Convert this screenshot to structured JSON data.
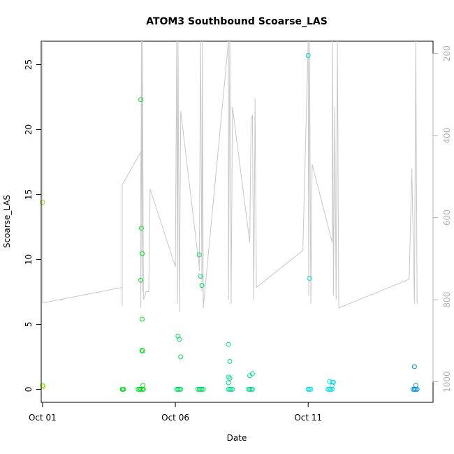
{
  "chart_data": {
    "type": "scatter",
    "title": "ATOM3 Southbound Scoarse_LAS",
    "xlabel": "Date",
    "ylabel": "Scoarse_LAS",
    "y2label": "",
    "x_ticks": [
      "Oct 01",
      "Oct 06",
      "Oct 11"
    ],
    "x_tick_days": [
      1,
      6,
      11
    ],
    "xlim": [
      0.95,
      15.7
    ],
    "ylim": [
      -1.0,
      26.8
    ],
    "y_ticks": [
      0,
      5,
      10,
      15,
      20,
      25
    ],
    "y2lim": [
      1050,
      170
    ],
    "y2_ticks": [
      200,
      400,
      600,
      800,
      1000
    ],
    "grid": false,
    "legend": "none",
    "colors": {
      "line": "#c8c8c8",
      "right_axis": "#b0b0b0",
      "axis": "#000000"
    },
    "scatter_series": [
      {
        "color": "#88e000",
        "points": [
          [
            1.0,
            14.4
          ],
          [
            1.0,
            0.3
          ],
          [
            1.02,
            0.2
          ]
        ]
      },
      {
        "color": "#00e020",
        "points": [
          [
            4.0,
            0.0
          ],
          [
            4.02,
            0.0
          ],
          [
            4.05,
            0.0
          ],
          [
            4.7,
            22.3
          ],
          [
            4.72,
            12.4
          ],
          [
            4.75,
            10.45
          ],
          [
            4.7,
            8.4
          ],
          [
            4.75,
            5.4
          ],
          [
            4.74,
            3.0
          ],
          [
            4.77,
            2.95
          ],
          [
            4.78,
            0.3
          ],
          [
            4.6,
            0.0
          ],
          [
            4.65,
            0.0
          ],
          [
            4.7,
            0.0
          ],
          [
            4.75,
            0.0
          ],
          [
            4.8,
            0.0
          ]
        ]
      },
      {
        "color": "#00e060",
        "points": [
          [
            6.1,
            4.1
          ],
          [
            6.15,
            3.85
          ],
          [
            6.2,
            2.5
          ],
          [
            6.05,
            0.0
          ],
          [
            6.1,
            0.0
          ],
          [
            6.15,
            0.0
          ],
          [
            6.2,
            0.0
          ],
          [
            6.9,
            10.35
          ],
          [
            6.95,
            8.7
          ],
          [
            7.0,
            8.0
          ],
          [
            6.85,
            0.0
          ],
          [
            6.9,
            0.0
          ],
          [
            6.95,
            0.0
          ],
          [
            7.0,
            0.0
          ],
          [
            7.05,
            0.0
          ]
        ]
      },
      {
        "color": "#00e090",
        "points": [
          [
            8.0,
            3.45
          ],
          [
            8.05,
            2.15
          ],
          [
            8.0,
            0.95
          ],
          [
            8.05,
            0.85
          ],
          [
            8.0,
            0.5
          ],
          [
            8.0,
            0.0
          ],
          [
            8.05,
            0.0
          ],
          [
            8.1,
            0.0
          ],
          [
            8.15,
            0.0
          ],
          [
            8.8,
            1.05
          ],
          [
            8.9,
            1.2
          ],
          [
            8.75,
            0.0
          ],
          [
            8.8,
            0.0
          ],
          [
            8.85,
            0.0
          ],
          [
            8.9,
            0.0
          ]
        ]
      },
      {
        "color": "#00e0e0",
        "points": [
          [
            11.0,
            25.7
          ],
          [
            11.05,
            8.55
          ],
          [
            11.0,
            0.0
          ],
          [
            11.05,
            0.0
          ],
          [
            11.1,
            0.0
          ],
          [
            11.8,
            0.6
          ],
          [
            11.9,
            0.55
          ],
          [
            11.95,
            0.55
          ],
          [
            11.9,
            0.3
          ],
          [
            11.75,
            0.0
          ],
          [
            11.8,
            0.0
          ],
          [
            11.85,
            0.0
          ],
          [
            11.9,
            0.0
          ]
        ]
      },
      {
        "color": "#0090e8",
        "points": [
          [
            15.0,
            1.75
          ],
          [
            15.05,
            0.3
          ],
          [
            14.95,
            0.0
          ],
          [
            15.0,
            0.0
          ],
          [
            15.05,
            0.0
          ],
          [
            15.1,
            0.0
          ]
        ]
      }
    ],
    "line_series": {
      "axis": "right",
      "points": [
        [
          1.0,
          170
        ],
        [
          1.0,
          808
        ],
        [
          4.0,
          770
        ],
        [
          4.0,
          815
        ],
        [
          4.0,
          520
        ],
        [
          4.7,
          440
        ],
        [
          4.7,
          820
        ],
        [
          4.72,
          170
        ],
        [
          4.75,
          780
        ],
        [
          4.76,
          170
        ],
        [
          4.78,
          500
        ],
        [
          4.8,
          800
        ],
        [
          4.9,
          780
        ],
        [
          5.0,
          780
        ],
        [
          5.05,
          530
        ],
        [
          6.0,
          720
        ],
        [
          6.05,
          170
        ],
        [
          6.08,
          810
        ],
        [
          6.1,
          170
        ],
        [
          6.15,
          830
        ],
        [
          6.2,
          340
        ],
        [
          6.9,
          720
        ],
        [
          6.9,
          730
        ],
        [
          6.95,
          170
        ],
        [
          7.0,
          780
        ],
        [
          7.02,
          170
        ],
        [
          7.05,
          820
        ],
        [
          8.0,
          170
        ],
        [
          8.0,
          800
        ],
        [
          8.05,
          170
        ],
        [
          8.1,
          810
        ],
        [
          8.15,
          330
        ],
        [
          8.8,
          660
        ],
        [
          8.85,
          360
        ],
        [
          8.9,
          350
        ],
        [
          8.95,
          800
        ],
        [
          9.0,
          310
        ],
        [
          9.05,
          770
        ],
        [
          10.8,
          680
        ],
        [
          11.0,
          170
        ],
        [
          11.02,
          790
        ],
        [
          11.05,
          170
        ],
        [
          11.1,
          810
        ],
        [
          11.15,
          470
        ],
        [
          11.9,
          660
        ],
        [
          11.92,
          170
        ],
        [
          11.95,
          790
        ],
        [
          12.0,
          330
        ],
        [
          12.05,
          800
        ],
        [
          12.1,
          170
        ],
        [
          12.15,
          820
        ],
        [
          14.8,
          750
        ],
        [
          14.9,
          480
        ],
        [
          15.0,
          810
        ],
        [
          15.05,
          170
        ],
        [
          15.1,
          810
        ]
      ]
    }
  }
}
